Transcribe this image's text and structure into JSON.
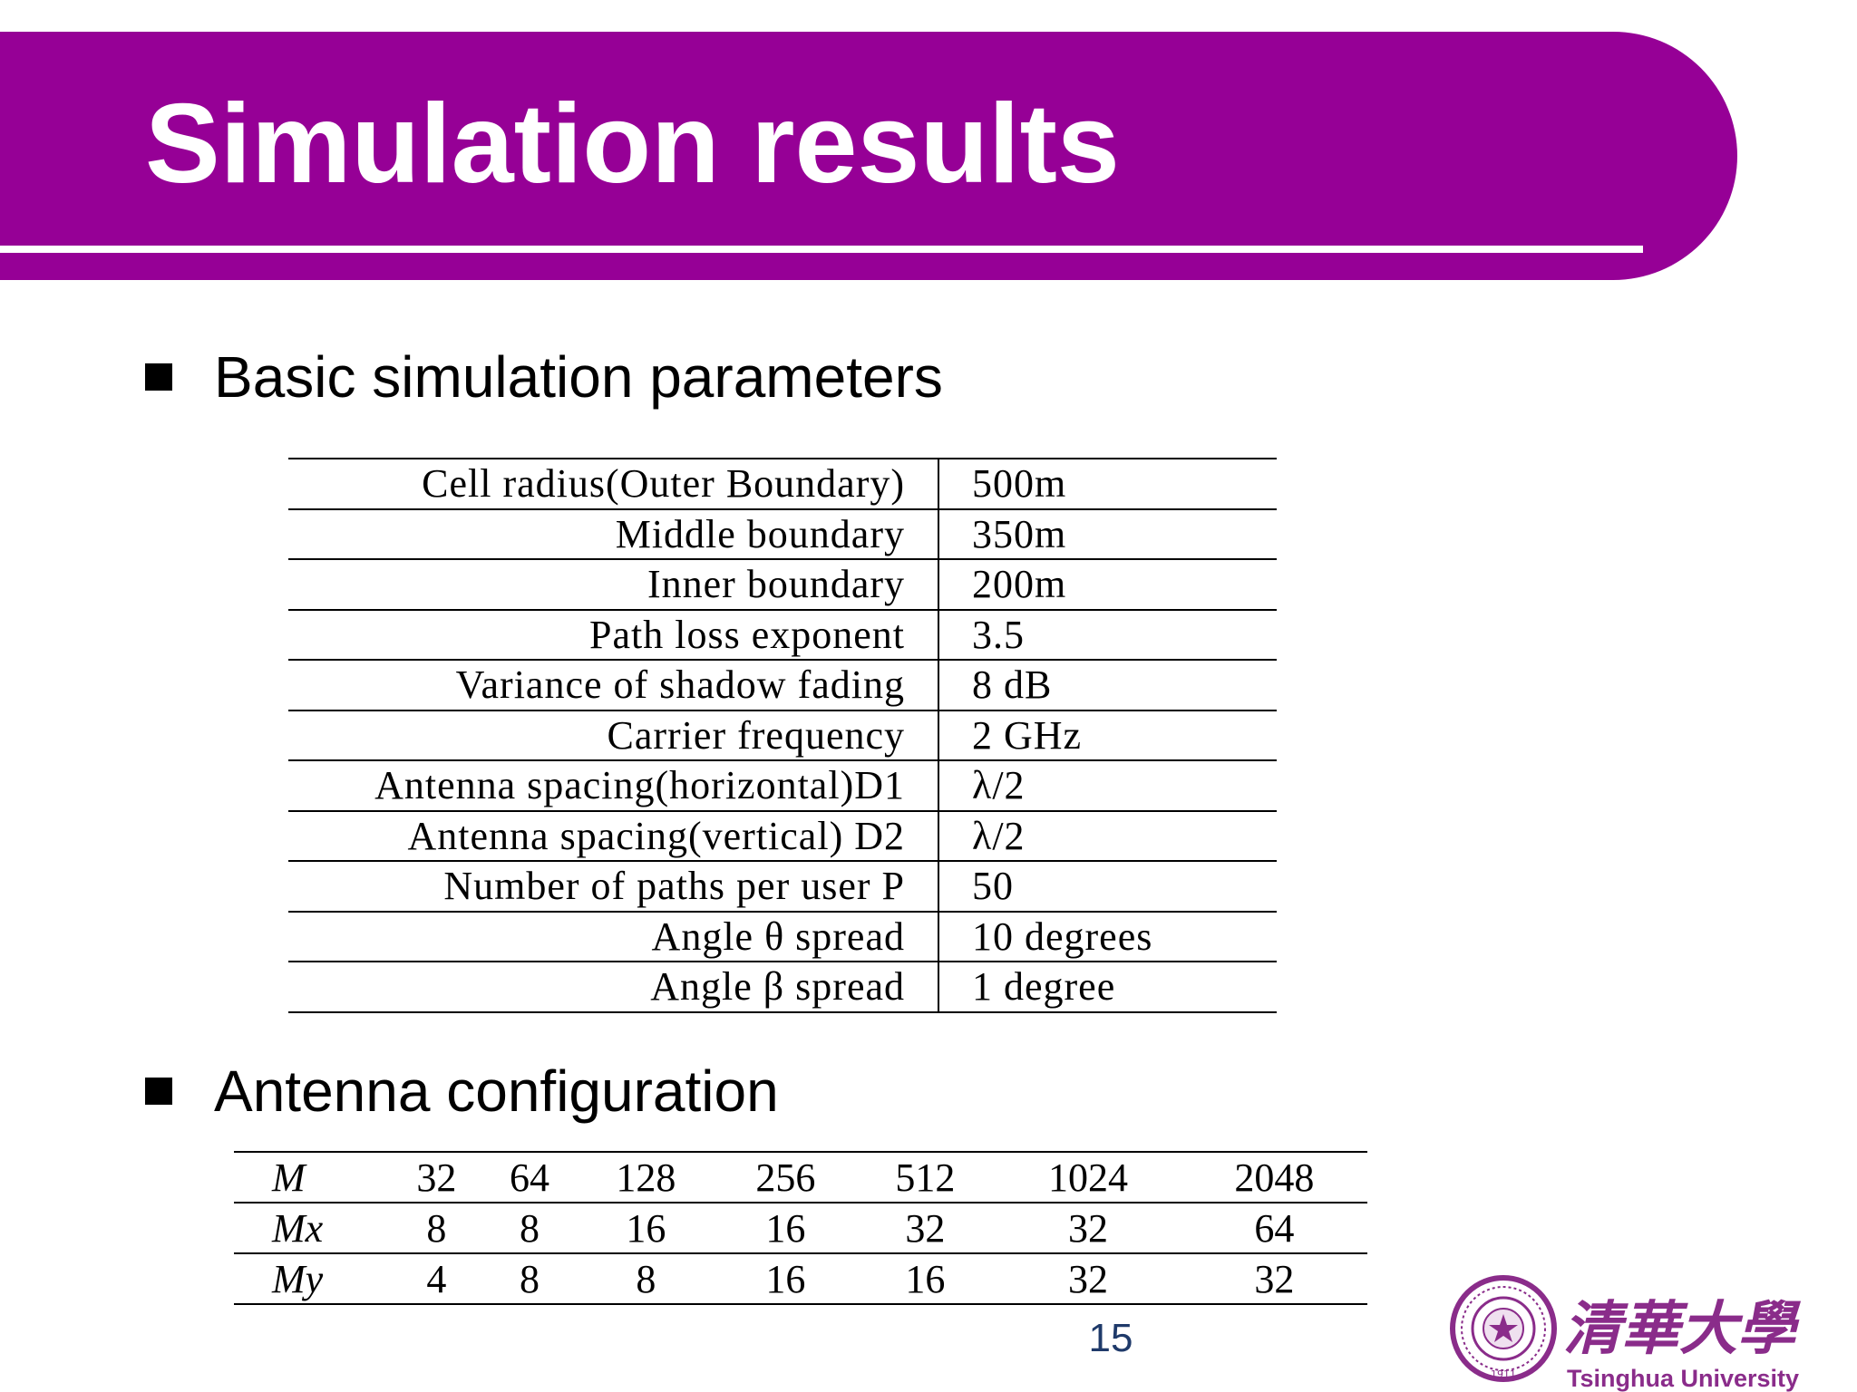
{
  "slide": {
    "title": "Simulation results",
    "page_number": "15"
  },
  "sections": [
    {
      "heading": "Basic simulation parameters"
    },
    {
      "heading": "Antenna configuration"
    }
  ],
  "parameters": [
    {
      "name": "Cell radius(Outer Boundary)",
      "value": "500m"
    },
    {
      "name": "Middle boundary",
      "value": "350m"
    },
    {
      "name": "Inner boundary",
      "value": "200m"
    },
    {
      "name": "Path loss exponent",
      "value": "3.5"
    },
    {
      "name": "Variance of shadow fading",
      "value": "8 dB"
    },
    {
      "name": "Carrier frequency",
      "value": "2 GHz"
    },
    {
      "name": "Antenna spacing(horizontal)D1",
      "value": "λ/2"
    },
    {
      "name": "Antenna spacing(vertical) D2",
      "value": "λ/2"
    },
    {
      "name": "Number of paths per user P",
      "value": "50"
    },
    {
      "name": "Angle θ spread",
      "value": "10 degrees"
    },
    {
      "name": "Angle β spread",
      "value": "1 degree"
    }
  ],
  "antenna_configuration": {
    "rows": [
      {
        "label": "M",
        "values": [
          "32",
          "64",
          "128",
          "256",
          "512",
          "1024",
          "2048"
        ]
      },
      {
        "label": "Mx",
        "values": [
          "8",
          "8",
          "16",
          "16",
          "32",
          "32",
          "64"
        ]
      },
      {
        "label": "My",
        "values": [
          "4",
          "8",
          "8",
          "16",
          "16",
          "32",
          "32"
        ]
      }
    ]
  },
  "logo": {
    "chinese_text": "清華大學",
    "english_text": "Tsinghua University",
    "seal_year": "1911",
    "brand_color": "#8a2c8a"
  },
  "colors": {
    "title_band": "#960096",
    "page_number": "#1f3a6a"
  }
}
